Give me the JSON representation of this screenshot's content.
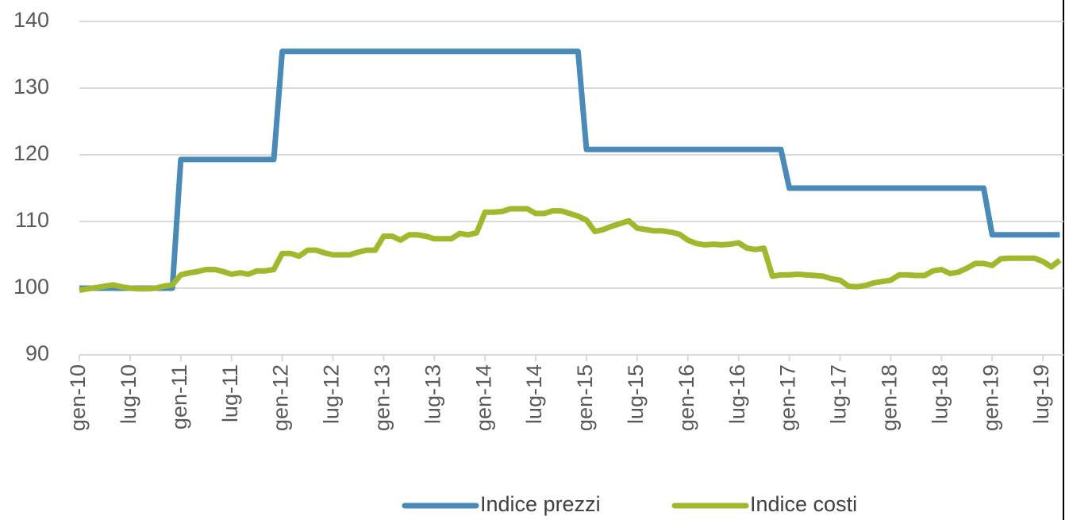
{
  "chart_data": {
    "type": "line",
    "categories": [
      "gen-10",
      null,
      null,
      null,
      null,
      null,
      "lug-10",
      null,
      null,
      null,
      null,
      null,
      "gen-11",
      null,
      null,
      null,
      null,
      null,
      "lug-11",
      null,
      null,
      null,
      null,
      null,
      "gen-12",
      null,
      null,
      null,
      null,
      null,
      "lug-12",
      null,
      null,
      null,
      null,
      null,
      "gen-13",
      null,
      null,
      null,
      null,
      null,
      "lug-13",
      null,
      null,
      null,
      null,
      null,
      "gen-14",
      null,
      null,
      null,
      null,
      null,
      "lug-14",
      null,
      null,
      null,
      null,
      null,
      "gen-15",
      null,
      null,
      null,
      null,
      null,
      "lug-15",
      null,
      null,
      null,
      null,
      null,
      "gen-16",
      null,
      null,
      null,
      null,
      null,
      "lug-16",
      null,
      null,
      null,
      null,
      null,
      "gen-17",
      null,
      null,
      null,
      null,
      null,
      "lug-17",
      null,
      null,
      null,
      null,
      null,
      "gen-18",
      null,
      null,
      null,
      null,
      null,
      "lug-18",
      null,
      null,
      null,
      null,
      null,
      "gen-19",
      null,
      null,
      null,
      null,
      null,
      "lug-19",
      null,
      null
    ],
    "series": [
      {
        "name": "Indice prezzi",
        "color": "#4a8ab8",
        "values": [
          100,
          100,
          100,
          100,
          100,
          100,
          100,
          100,
          100,
          100,
          100,
          100,
          119.3,
          119.3,
          119.3,
          119.3,
          119.3,
          119.3,
          119.3,
          119.3,
          119.3,
          119.3,
          119.3,
          119.3,
          135.5,
          135.5,
          135.5,
          135.5,
          135.5,
          135.5,
          135.5,
          135.5,
          135.5,
          135.5,
          135.5,
          135.5,
          135.5,
          135.5,
          135.5,
          135.5,
          135.5,
          135.5,
          135.5,
          135.5,
          135.5,
          135.5,
          135.5,
          135.5,
          135.5,
          135.5,
          135.5,
          135.5,
          135.5,
          135.5,
          135.5,
          135.5,
          135.5,
          135.5,
          135.5,
          135.5,
          120.8,
          120.8,
          120.8,
          120.8,
          120.8,
          120.8,
          120.8,
          120.8,
          120.8,
          120.8,
          120.8,
          120.8,
          120.8,
          120.8,
          120.8,
          120.8,
          120.8,
          120.8,
          120.8,
          120.8,
          120.8,
          120.8,
          120.8,
          120.8,
          115,
          115,
          115,
          115,
          115,
          115,
          115,
          115,
          115,
          115,
          115,
          115,
          115,
          115,
          115,
          115,
          115,
          115,
          115,
          115,
          115,
          115,
          115,
          115,
          108,
          108,
          108,
          108,
          108,
          108,
          108,
          108,
          108
        ]
      },
      {
        "name": "Indice costi",
        "color": "#a2b82c",
        "values": [
          99.7,
          99.9,
          100.1,
          100.3,
          100.5,
          100.2,
          100,
          99.9,
          99.9,
          100,
          100.3,
          100.5,
          102,
          102.3,
          102.5,
          102.8,
          102.8,
          102.5,
          102.1,
          102.3,
          102.1,
          102.6,
          102.6,
          102.8,
          105.2,
          105.2,
          104.8,
          105.7,
          105.7,
          105.3,
          105,
          105,
          105,
          105.4,
          105.7,
          105.7,
          107.8,
          107.8,
          107.2,
          108,
          108,
          107.8,
          107.4,
          107.4,
          107.4,
          108.2,
          108,
          108.3,
          111.4,
          111.4,
          111.5,
          111.9,
          111.9,
          111.9,
          111.2,
          111.2,
          111.6,
          111.6,
          111.2,
          110.8,
          110.2,
          108.5,
          108.8,
          109.3,
          109.7,
          110.1,
          109,
          108.8,
          108.6,
          108.6,
          108.4,
          108.1,
          107.2,
          106.7,
          106.5,
          106.6,
          106.5,
          106.6,
          106.8,
          106,
          105.8,
          106,
          101.8,
          102,
          102,
          102.1,
          102,
          101.9,
          101.8,
          101.4,
          101.2,
          100.3,
          100.2,
          100.4,
          100.8,
          101,
          101.2,
          102,
          102,
          101.9,
          101.9,
          102.6,
          102.8,
          102.2,
          102.4,
          103,
          103.7,
          103.7,
          103.4,
          104.4,
          104.5,
          104.5,
          104.5,
          104.5,
          104,
          103.2,
          104.2
        ]
      }
    ],
    "ylim": [
      90,
      140
    ],
    "yticks": [
      90,
      100,
      110,
      120,
      130,
      140
    ],
    "grid": true,
    "legend": "bottom"
  }
}
